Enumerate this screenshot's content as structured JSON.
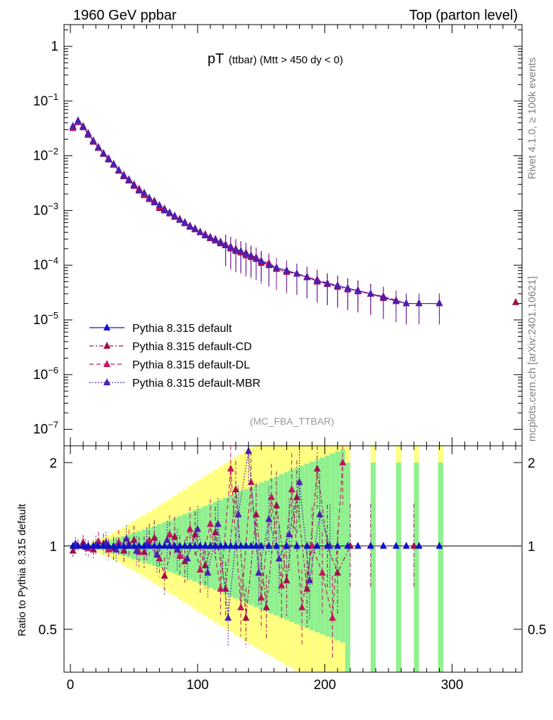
{
  "header": {
    "left": "1960 GeV ppbar",
    "right": "Top (parton level)"
  },
  "side": {
    "rivet": "Rivet 4.1.0, ≥ 100k events",
    "mcplots": "mcplots.cern.ch [arXiv:2401.10621]"
  },
  "chart_data": {
    "type": "line",
    "title_main": "pT",
    "title_rest": " (ttbar) (Mtt > 450 dy < 0)",
    "analysis": "(MC_FBA_TTBAR)",
    "xlim": [
      -5,
      355
    ],
    "ylim": [
      5e-08,
      2.5
    ],
    "ylabel_ratio": "Ratio to Pythia 8.315 default",
    "ratio_ylim": [
      0.35,
      2.3
    ],
    "x_ticks": [
      "0",
      "100",
      "200",
      "300"
    ],
    "x_tick_values": [
      0,
      100,
      200,
      300
    ],
    "ratio_ticks": [
      "0.5",
      "1",
      "2"
    ],
    "ratio_tick_values": [
      0.5,
      1,
      2
    ],
    "legend": [
      {
        "name": "Pythia 8.315 default",
        "color": "#1010cc",
        "dash": ""
      },
      {
        "name": "Pythia 8.315 default-CD",
        "color": "#a0104a",
        "dash": "6,3,2,3"
      },
      {
        "name": "Pythia 8.315 default-DL",
        "color": "#c4155e",
        "dash": "6,4"
      },
      {
        "name": "Pythia 8.315 default-MBR",
        "color": "#4a20b0",
        "dash": "2,2"
      }
    ],
    "series": [
      {
        "name": "Pythia 8.315 default",
        "x": [
          2,
          6,
          10,
          14,
          18,
          22,
          26,
          30,
          34,
          38,
          42,
          46,
          50,
          54,
          58,
          62,
          66,
          70,
          74,
          78,
          82,
          86,
          90,
          94,
          98,
          102,
          106,
          110,
          114,
          118,
          122,
          126,
          130,
          134,
          138,
          142,
          146,
          150,
          156,
          162,
          170,
          178,
          186,
          194,
          202,
          210,
          218,
          226,
          236,
          246,
          256,
          264,
          274,
          290
        ],
        "y": [
          0.034,
          0.043,
          0.034,
          0.025,
          0.019,
          0.014,
          0.011,
          0.0088,
          0.0069,
          0.0054,
          0.0044,
          0.0036,
          0.0029,
          0.0024,
          0.002,
          0.0017,
          0.0014,
          0.0012,
          0.00105,
          0.0009,
          0.00078,
          0.00068,
          0.0006,
          0.00052,
          0.00046,
          0.0004,
          0.00036,
          0.00032,
          0.00029,
          0.00026,
          0.00024,
          0.00021,
          0.00019,
          0.00018,
          0.00016,
          0.00015,
          0.00013,
          0.00012,
          0.0001,
          9e-05,
          8e-05,
          7e-05,
          6e-05,
          5.2e-05,
          4.6e-05,
          4.2e-05,
          3.8e-05,
          3.4e-05,
          3e-05,
          2.6e-05,
          2.2e-05,
          2e-05,
          2e-05,
          2e-05
        ]
      },
      {
        "name": "Pythia 8.315 default-CD",
        "x": [
          2,
          6,
          10,
          14,
          18,
          22,
          26,
          30,
          34,
          38,
          42,
          46,
          50,
          54,
          58,
          62,
          66,
          70,
          74,
          78,
          82,
          86,
          90,
          94,
          98,
          102,
          106,
          110,
          114,
          118,
          122,
          126,
          130,
          134,
          138,
          142,
          146,
          150,
          156,
          162,
          170,
          178,
          186,
          194,
          202,
          210,
          218,
          226,
          236,
          246,
          256,
          264,
          274,
          290
        ],
        "y": [
          0.032,
          0.041,
          0.035,
          0.026,
          0.018,
          0.0145,
          0.0108,
          0.0085,
          0.007,
          0.0055,
          0.0042,
          0.0037,
          0.003,
          0.0024,
          0.0019,
          0.0017,
          0.0015,
          0.0011,
          0.00108,
          0.00088,
          0.0008,
          0.0007,
          0.00058,
          0.0005,
          0.00047,
          0.00041,
          0.00035,
          0.00031,
          0.0003,
          0.00025,
          0.00023,
          0.00022,
          0.00018,
          0.00017,
          0.00017,
          0.00014,
          0.00013,
          0.00011,
          0.0001,
          8.5e-05,
          7.5e-05,
          7e-05,
          6.2e-05,
          5e-05,
          4.5e-05,
          4e-05,
          3.6e-05,
          3.5e-05,
          3e-05,
          2.5e-05,
          2.2e-05,
          2e-05,
          2e-05,
          2e-05
        ]
      },
      {
        "name": "Pythia 8.315 default-DL",
        "x": [
          2,
          6,
          10,
          14,
          18,
          22,
          26,
          30,
          34,
          38,
          42,
          46,
          50,
          54,
          58,
          62,
          66,
          70,
          74,
          78,
          82,
          86,
          90,
          94,
          98,
          102,
          106,
          110,
          114,
          118,
          122,
          126,
          130,
          134,
          138,
          142,
          146,
          150,
          156,
          162,
          170,
          178,
          186,
          194,
          202,
          210,
          218,
          226,
          236,
          246,
          256,
          264,
          274,
          290
        ],
        "y": [
          0.033,
          0.042,
          0.033,
          0.024,
          0.019,
          0.0138,
          0.0112,
          0.009,
          0.0068,
          0.0053,
          0.0045,
          0.0035,
          0.0028,
          0.0025,
          0.002,
          0.0016,
          0.0014,
          0.0012,
          0.001,
          0.0009,
          0.00076,
          0.00069,
          0.0006,
          0.00053,
          0.00045,
          0.0004,
          0.00037,
          0.00033,
          0.00028,
          0.00027,
          0.00024,
          0.0002,
          0.0002,
          0.00018,
          0.00015,
          0.00015,
          0.00014,
          0.00012,
          0.00011,
          9e-05,
          8e-05,
          7e-05,
          6e-05,
          5.5e-05,
          4.7e-05,
          4.3e-05,
          3.8e-05,
          3.3e-05,
          3e-05,
          2.7e-05,
          2.3e-05,
          2e-05,
          2e-05,
          2e-05
        ]
      },
      {
        "name": "Pythia 8.315 default-MBR",
        "x": [
          2,
          6,
          10,
          14,
          18,
          22,
          26,
          30,
          34,
          38,
          42,
          46,
          50,
          54,
          58,
          62,
          66,
          70,
          74,
          78,
          82,
          86,
          90,
          94,
          98,
          102,
          106,
          110,
          114,
          118,
          122,
          126,
          130,
          134,
          138,
          142,
          146,
          150,
          156,
          162,
          170,
          178,
          186,
          194,
          202,
          210,
          218,
          226,
          236,
          246,
          256,
          264,
          274,
          290
        ],
        "y": [
          0.035,
          0.044,
          0.034,
          0.025,
          0.0185,
          0.0142,
          0.011,
          0.0087,
          0.0071,
          0.0055,
          0.0043,
          0.0036,
          0.0029,
          0.0023,
          0.0021,
          0.0017,
          0.0014,
          0.00125,
          0.001,
          0.00092,
          0.00079,
          0.00067,
          0.00061,
          0.00051,
          0.00046,
          0.0004,
          0.00035,
          0.00032,
          0.00029,
          0.00026,
          0.00023,
          0.00021,
          0.00019,
          0.00018,
          0.00016,
          0.00015,
          0.00013,
          0.00012,
          0.0001,
          9e-05,
          8e-05,
          7e-05,
          6e-05,
          5.2e-05,
          4.6e-05,
          4.2e-05,
          3.8e-05,
          3.4e-05,
          3e-05,
          2.6e-05,
          2.2e-05,
          2e-05,
          2e-05,
          2e-05
        ]
      }
    ],
    "ratio_series": [
      {
        "name": "Pythia 8.315 default-CD",
        "x": [
          2,
          10,
          18,
          26,
          34,
          42,
          50,
          58,
          66,
          74,
          82,
          90,
          98,
          106,
          114,
          122,
          130,
          138,
          146,
          154,
          162,
          170,
          178,
          186,
          194,
          202,
          210,
          220,
          236,
          270
        ],
        "y": [
          0.96,
          1.03,
          0.97,
          1.02,
          0.98,
          0.96,
          1.05,
          0.95,
          1.07,
          0.78,
          1.08,
          0.88,
          1.1,
          0.85,
          1.12,
          0.7,
          1.6,
          0.55,
          1.3,
          0.6,
          1.4,
          0.75,
          1.5,
          0.7,
          1.9,
          1.0,
          0.8,
          1.0,
          1.0,
          1.0
        ]
      },
      {
        "name": "Pythia 8.315 default-DL",
        "x": [
          6,
          14,
          22,
          30,
          38,
          46,
          54,
          62,
          70,
          78,
          86,
          94,
          102,
          110,
          118,
          126,
          134,
          142,
          150,
          158,
          166,
          174,
          182,
          190,
          198,
          206,
          214
        ],
        "y": [
          1.0,
          0.98,
          1.04,
          0.97,
          1.03,
          1.02,
          0.95,
          1.05,
          0.9,
          1.1,
          0.92,
          1.15,
          0.82,
          1.2,
          0.7,
          1.9,
          0.6,
          1.7,
          0.65,
          1.5,
          0.72,
          1.6,
          0.6,
          1.0,
          0.8,
          0.55,
          2.0
        ]
      },
      {
        "name": "Pythia 8.315 default-MBR",
        "x": [
          4,
          12,
          20,
          28,
          36,
          44,
          52,
          60,
          68,
          76,
          84,
          92,
          100,
          108,
          116,
          124,
          132,
          140,
          148,
          156,
          164,
          172,
          180,
          188,
          196,
          204
        ],
        "y": [
          1.02,
          0.99,
          1.01,
          1.03,
          0.97,
          1.06,
          0.96,
          1.02,
          0.93,
          1.05,
          0.97,
          0.9,
          1.15,
          0.8,
          1.2,
          0.55,
          1.3,
          2.2,
          0.8,
          1.25,
          0.9,
          1.1,
          1.7,
          0.75,
          1.3,
          1.0
        ]
      }
    ]
  }
}
